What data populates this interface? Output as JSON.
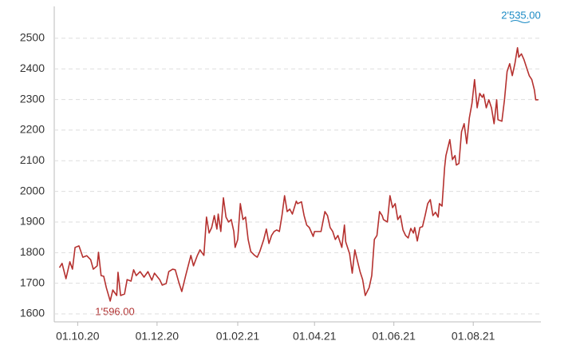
{
  "chart_data": {
    "type": "line",
    "x": [
      "17.09.20",
      "19.09.20",
      "22.09.20",
      "25.09.20",
      "27.09.20",
      "29.09.20",
      "02.10.20",
      "05.10.20",
      "08.10.20",
      "11.10.20",
      "13.10.20",
      "16.10.20",
      "17.10.20",
      "19.10.20",
      "21.10.20",
      "23.10.20",
      "26.10.20",
      "28.10.20",
      "31.10.20",
      "01.11.20",
      "03.11.20",
      "06.11.20",
      "08.11.20",
      "11.11.20",
      "13.11.20",
      "15.11.20",
      "18.11.20",
      "21.11.20",
      "24.11.20",
      "27.11.20",
      "29.11.20",
      "03.12.20",
      "05.12.20",
      "08.12.20",
      "10.12.20",
      "13.12.20",
      "15.12.20",
      "18.12.20",
      "20.12.20",
      "23.12.20",
      "27.12.20",
      "29.12.20",
      "01.01.21",
      "03.01.21",
      "06.01.21",
      "08.01.21",
      "10.01.21",
      "12.01.21",
      "14.01.21",
      "16.01.21",
      "17.01.21",
      "19.01.21",
      "21.01.21",
      "23.01.21",
      "25.01.21",
      "27.01.21",
      "29.01.21",
      "30.01.21",
      "01.02.21",
      "03.02.21",
      "05.02.21",
      "07.02.21",
      "09.02.21",
      "11.02.21",
      "14.02.21",
      "16.02.21",
      "18.02.21",
      "21.02.21",
      "23.02.21",
      "25.02.21",
      "27.02.21",
      "01.03.21",
      "03.03.21",
      "05.03.21",
      "07.03.21",
      "09.03.21",
      "11.03.21",
      "13.03.21",
      "15.03.21",
      "18.03.21",
      "19.03.21",
      "22.03.21",
      "24.03.21",
      "26.03.21",
      "28.03.21",
      "31.03.21",
      "01.04.21",
      "04.04.21",
      "06.04.21",
      "09.04.21",
      "11.04.21",
      "13.04.21",
      "15.04.21",
      "17.04.21",
      "19.04.21",
      "22.04.21",
      "24.04.21",
      "25.04.21",
      "28.04.21",
      "30.04.21",
      "02.05.21",
      "04.05.21",
      "06.05.21",
      "08.05.21",
      "10.05.21",
      "13.05.21",
      "15.05.21",
      "17.05.21",
      "19.05.21",
      "21.05.21",
      "23.05.21",
      "24.05.21",
      "27.05.21",
      "29.05.21",
      "31.05.21",
      "02.06.21",
      "04.06.21",
      "06.06.21",
      "08.06.21",
      "10.06.21",
      "12.06.21",
      "14.06.21",
      "16.06.21",
      "17.06.21",
      "19.06.21",
      "21.06.21",
      "23.06.21",
      "25.06.21",
      "27.06.21",
      "29.06.21",
      "01.07.21",
      "03.07.21",
      "05.07.21",
      "06.07.21",
      "08.07.21",
      "10.07.21",
      "11.07.21",
      "14.07.21",
      "16.07.21",
      "18.07.21",
      "19.07.21",
      "21.07.21",
      "23.07.21",
      "25.07.21",
      "27.07.21",
      "29.07.21",
      "31.07.21",
      "02.08.21",
      "04.08.21",
      "06.08.21",
      "08.08.21",
      "09.08.21",
      "11.08.21",
      "13.08.21",
      "15.08.21",
      "17.08.21",
      "19.08.21",
      "20.08.21",
      "23.08.21",
      "25.08.21",
      "27.08.21",
      "29.08.21",
      "31.08.21",
      "02.09.21",
      "04.09.21",
      "05.09.21",
      "07.09.21",
      "09.09.21",
      "11.09.21",
      "13.09.21",
      "15.09.21",
      "17.09.21",
      "18.09.21",
      "20.09.21"
    ],
    "series": [
      {
        "color": "#b5312f",
        "values": [
          1751,
          1765,
          1715,
          1770,
          1746,
          1817,
          1822,
          1785,
          1790,
          1777,
          1746,
          1757,
          1801,
          1725,
          1723,
          1686,
          1642,
          1678,
          1660,
          1736,
          1660,
          1665,
          1712,
          1707,
          1744,
          1725,
          1738,
          1720,
          1738,
          1710,
          1733,
          1712,
          1694,
          1699,
          1738,
          1746,
          1744,
          1699,
          1673,
          1725,
          1791,
          1757,
          1791,
          1809,
          1791,
          1916,
          1864,
          1882,
          1921,
          1877,
          1926,
          1869,
          1979,
          1916,
          1900,
          1908,
          1869,
          1817,
          1843,
          1960,
          1908,
          1916,
          1843,
          1804,
          1791,
          1785,
          1804,
          1843,
          1877,
          1830,
          1856,
          1869,
          1874,
          1869,
          1921,
          1986,
          1934,
          1942,
          1926,
          1968,
          1960,
          1966,
          1921,
          1890,
          1882,
          1853,
          1869,
          1869,
          1869,
          1934,
          1921,
          1882,
          1869,
          1843,
          1856,
          1817,
          1890,
          1835,
          1796,
          1733,
          1809,
          1773,
          1738,
          1712,
          1660,
          1686,
          1725,
          1843,
          1856,
          1934,
          1921,
          1908,
          1900,
          1986,
          1947,
          1960,
          1908,
          1921,
          1874,
          1856,
          1848,
          1879,
          1864,
          1882,
          1838,
          1882,
          1885,
          1921,
          1960,
          1973,
          1921,
          1932,
          1916,
          1960,
          1952,
          2078,
          2117,
          2169,
          2104,
          2117,
          2086,
          2091,
          2195,
          2221,
          2156,
          2240,
          2287,
          2365,
          2273,
          2320,
          2307,
          2317,
          2273,
          2299,
          2273,
          2221,
          2299,
          2234,
          2229,
          2299,
          2391,
          2417,
          2378,
          2417,
          2469,
          2438,
          2449,
          2430,
          2404,
          2378,
          2365,
          2331,
          2299,
          2299
        ]
      }
    ],
    "xlim": [
      "13.09.20",
      "22.09.21"
    ],
    "xticks": [
      "01.10.20",
      "01.12.20",
      "01.02.21",
      "01.04.21",
      "01.06.21",
      "01.08.21"
    ],
    "ylim": [
      1574,
      2604
    ],
    "yticks": [
      1600,
      1700,
      1800,
      1900,
      2000,
      2100,
      2200,
      2300,
      2400,
      2500
    ],
    "grid": true,
    "annotations": [
      {
        "text": "2'535.00",
        "color": "#1a8ac4"
      },
      {
        "text": "1'596.00",
        "color": "#b03030"
      }
    ]
  }
}
